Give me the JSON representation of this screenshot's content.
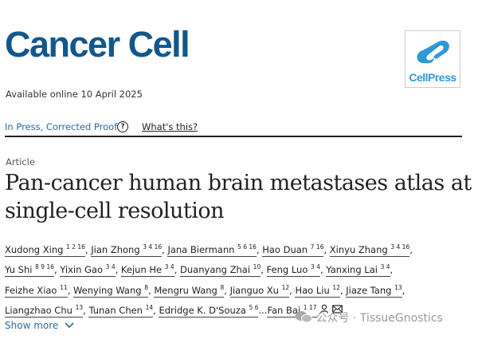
{
  "journal": {
    "title": "Cancer Cell",
    "available": "Available online 10 April 2025",
    "publisher_logo": "CellPress"
  },
  "status": {
    "label": "In Press, Corrected Proof",
    "help_icon": "?",
    "whats_this": "What's this?"
  },
  "article": {
    "type": "Article",
    "title": "Pan-cancer human brain metastases atlas at single-cell resolution"
  },
  "authors": [
    {
      "name": "Xudong Xing",
      "aff": "1 2 16"
    },
    {
      "name": "Jian Zhong",
      "aff": "3 4 16"
    },
    {
      "name": "Jana Biermann",
      "aff": "5 6 16"
    },
    {
      "name": "Hao Duan",
      "aff": "7 16"
    },
    {
      "name": "Xinyu Zhang",
      "aff": "3 4 16"
    },
    {
      "name": "Yu Shi",
      "aff": "8 9 16"
    },
    {
      "name": "Yixin Gao",
      "aff": "3 4"
    },
    {
      "name": "Kejun He",
      "aff": "3 4"
    },
    {
      "name": "Duanyang Zhai",
      "aff": "10"
    },
    {
      "name": "Feng Luo",
      "aff": "3 4"
    },
    {
      "name": "Yanxing Lai",
      "aff": "3 4"
    },
    {
      "name": "Feizhe Xiao",
      "aff": "11"
    },
    {
      "name": "Wenying Wang",
      "aff": "8"
    },
    {
      "name": "Mengru Wang",
      "aff": "8"
    },
    {
      "name": "Jianguo Xu",
      "aff": "12"
    },
    {
      "name": "Hao Liu",
      "aff": "12"
    },
    {
      "name": "Jiaze Tang",
      "aff": "13"
    },
    {
      "name": "Liangzhao Chu",
      "aff": "13"
    },
    {
      "name": "Tunan Chen",
      "aff": "14"
    },
    {
      "name": "Edridge K. D'Souza",
      "aff": "5 6"
    },
    {
      "name": "Fan Bai",
      "aff": "1 17"
    }
  ],
  "show_more": "Show more",
  "watermark": "公众号 · TissueGnostics"
}
